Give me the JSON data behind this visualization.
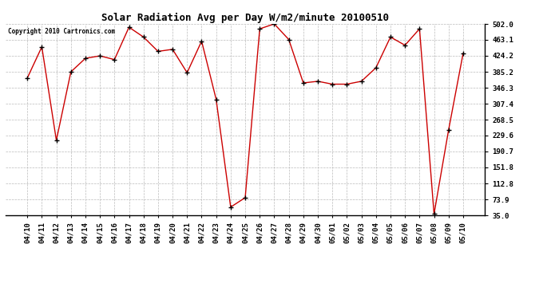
{
  "title": "Solar Radiation Avg per Day W/m2/minute 20100510",
  "copyright": "Copyright 2010 Cartronics.com",
  "dates": [
    "04/10",
    "04/11",
    "04/12",
    "04/13",
    "04/14",
    "04/15",
    "04/16",
    "04/17",
    "04/18",
    "04/19",
    "04/20",
    "04/21",
    "04/22",
    "04/23",
    "04/24",
    "04/25",
    "04/26",
    "04/27",
    "04/28",
    "04/29",
    "04/30",
    "05/01",
    "05/02",
    "05/03",
    "05/04",
    "05/05",
    "05/06",
    "05/07",
    "05/08",
    "05/09",
    "05/10"
  ],
  "values": [
    370,
    446,
    218,
    385,
    418,
    424,
    415,
    494,
    470,
    435,
    440,
    383,
    460,
    318,
    55,
    78,
    490,
    502,
    464,
    358,
    362,
    355,
    355,
    362,
    395,
    470,
    450,
    490,
    38,
    243,
    430
  ],
  "ylim_min": 35.0,
  "ylim_max": 502.0,
  "yticks": [
    35.0,
    73.9,
    112.8,
    151.8,
    190.7,
    229.6,
    268.5,
    307.4,
    346.3,
    385.2,
    424.2,
    463.1,
    502.0
  ],
  "line_color": "#cc0000",
  "marker_color": "#000000",
  "bg_color": "#ffffff",
  "grid_color": "#bbbbbb",
  "title_fontsize": 9,
  "tick_fontsize": 6.5,
  "copyright_fontsize": 5.5
}
